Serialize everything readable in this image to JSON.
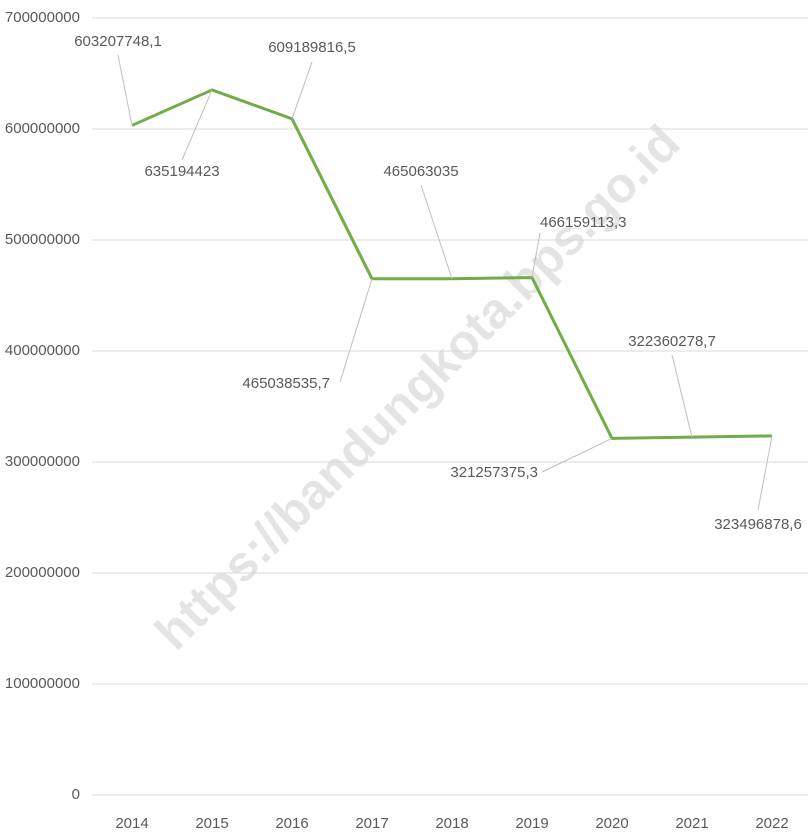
{
  "chart_data": {
    "type": "line",
    "watermark": "https://bandungkota.bps.go.id",
    "categories": [
      "2014",
      "2015",
      "2016",
      "2017",
      "2018",
      "2019",
      "2020",
      "2021",
      "2022"
    ],
    "series": [
      {
        "name": null,
        "color": "#70ad47",
        "values": [
          603207748.1,
          635194423,
          609189816.5,
          465038535.7,
          465063035,
          466159113.3,
          321257375.3,
          322360278.7,
          323496878.6
        ],
        "value_labels": [
          "603207748,1",
          "635194423",
          "609189816,5",
          "465038535,7",
          "465063035",
          "466159113,3",
          "321257375,3",
          "322360278,7",
          "323496878,6"
        ]
      }
    ],
    "ylim": [
      0,
      700000000
    ],
    "yticks": [
      0,
      100000000,
      200000000,
      300000000,
      400000000,
      500000000,
      600000000,
      700000000
    ],
    "grid": true
  }
}
